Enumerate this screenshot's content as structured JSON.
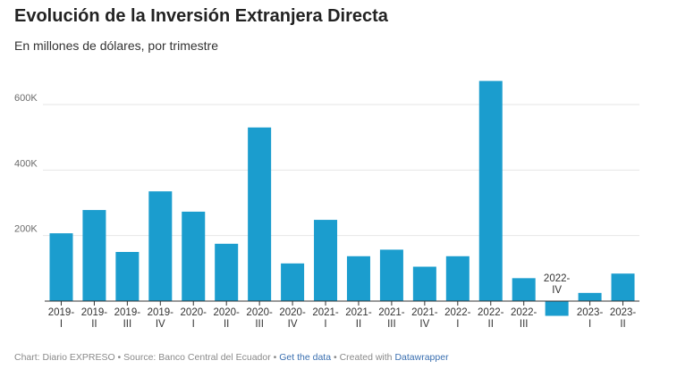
{
  "header": {
    "title": "Evolución de la Inversión Extranjera Directa",
    "subtitle": "En millones de dólares, por trimestre"
  },
  "footer": {
    "chart_by": "Chart: Diario EXPRESO",
    "sep1": " • ",
    "source": "Source: Banco Central del Ecuador",
    "sep2": " • ",
    "get_data": "Get the data",
    "sep3": " • ",
    "created_with": "Created with ",
    "datawrapper": "Datawrapper"
  },
  "chart_data": {
    "type": "bar",
    "title": "Evolución de la Inversión Extranjera Directa",
    "subtitle": "En millones de dólares, por trimestre",
    "categories": [
      [
        "2019-",
        "I"
      ],
      [
        "2019-",
        "II"
      ],
      [
        "2019-",
        "III"
      ],
      [
        "2019-",
        "IV"
      ],
      [
        "2020-",
        "I"
      ],
      [
        "2020-",
        "II"
      ],
      [
        "2020-",
        "III"
      ],
      [
        "2020-",
        "IV"
      ],
      [
        "2021-",
        "I"
      ],
      [
        "2021-",
        "II"
      ],
      [
        "2021-",
        "III"
      ],
      [
        "2021-",
        "IV"
      ],
      [
        "2022-",
        "I"
      ],
      [
        "2022-",
        "II"
      ],
      [
        "2022-",
        "III"
      ],
      [
        "2022-",
        "IV"
      ],
      [
        "2023-",
        "I"
      ],
      [
        "2023-",
        "II"
      ]
    ],
    "values": [
      207000,
      278000,
      150000,
      335000,
      273000,
      175000,
      530000,
      115000,
      248000,
      137000,
      157000,
      105000,
      137000,
      672000,
      70000,
      -45000,
      25000,
      84000
    ],
    "yticks": [
      200000,
      400000,
      600000
    ],
    "ytick_labels": [
      "200K",
      "400K",
      "600K"
    ],
    "ylim": [
      -45000,
      672000
    ],
    "grid": true,
    "bar_color": "#1b9dce",
    "grid_color": "#e6e6e6",
    "axis_color": "#333333"
  }
}
